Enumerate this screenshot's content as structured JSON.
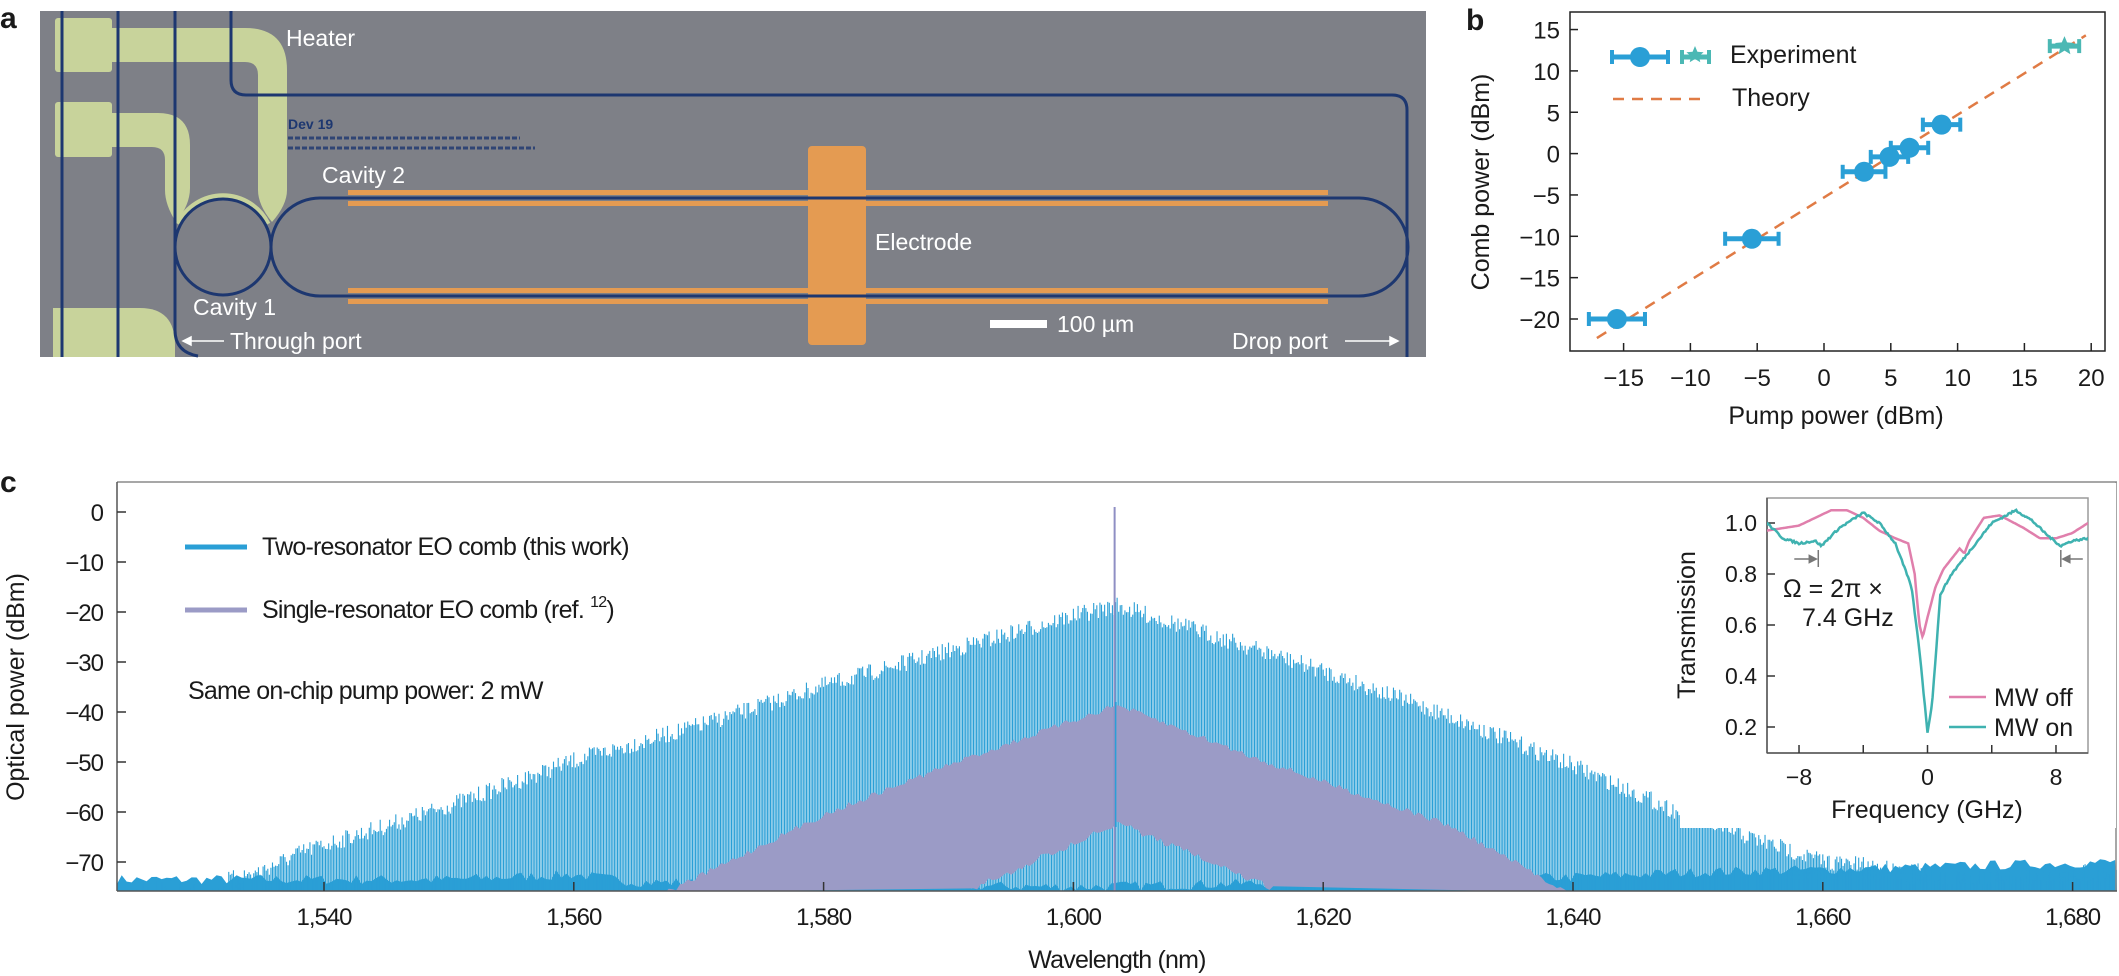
{
  "panel_labels": {
    "a": "a",
    "b": "b",
    "c": "c"
  },
  "micrograph": {
    "labels": {
      "heater": "Heater",
      "cavity1": "Cavity 1",
      "cavity2": "Cavity 2",
      "electrode": "Electrode",
      "through_port": "Through port",
      "drop_port": "Drop port",
      "scale_bar": "100 µm",
      "chip_text": "Dev 19"
    },
    "colors": {
      "background": "#7e8087",
      "waveguide": "#1d3770",
      "heater": "#c8d39b",
      "electrode": "#e49b52"
    }
  },
  "chart_data": [
    {
      "id": "b",
      "type": "scatter",
      "xlabel": "Pump power (dBm)",
      "ylabel": "Comb power (dBm)",
      "xlim": [
        -19,
        21
      ],
      "ylim": [
        -23.9,
        17.1
      ],
      "xticks": [
        -15,
        -10,
        -5,
        0,
        5,
        10,
        15,
        20
      ],
      "xtick_labels": [
        "−15",
        "−10",
        "−5",
        "0",
        "5",
        "10",
        "15",
        "20"
      ],
      "yticks": [
        -20,
        -15,
        -10,
        -5,
        0,
        5,
        10,
        15
      ],
      "ytick_labels": [
        "−20",
        "−15",
        "−10",
        "−5",
        "0",
        "5",
        "10",
        "15"
      ],
      "legend_placement": "top-left",
      "legend": [
        "Experiment",
        "Theory"
      ],
      "series": [
        {
          "name": "Experiment",
          "marker": "circle",
          "color": "#2a9fd6",
          "points": [
            {
              "x": -15.5,
              "y": -20.0,
              "xerr": 2.1
            },
            {
              "x": -5.4,
              "y": -10.3,
              "xerr": 2.0
            },
            {
              "x": 3.0,
              "y": -2.2,
              "xerr": 1.6
            },
            {
              "x": 4.9,
              "y": -0.4,
              "xerr": 1.4
            },
            {
              "x": 6.4,
              "y": 0.7,
              "xerr": 1.4
            },
            {
              "x": 8.8,
              "y": 3.5,
              "xerr": 1.4
            }
          ]
        },
        {
          "name": "Experiment",
          "marker": "star",
          "color": "#4bb8b4",
          "points": [
            {
              "x": 18.0,
              "y": 13.0,
              "xerr": 1.1
            }
          ]
        },
        {
          "name": "Theory",
          "style": "dashed",
          "color": "#e07b45",
          "line": {
            "x": [
              -17.0,
              19.6
            ],
            "y": [
              -22.3,
              14.3
            ]
          }
        }
      ]
    },
    {
      "id": "c",
      "type": "line",
      "xlabel": "Wavelength (nm)",
      "ylabel": "Optical power (dBm)",
      "xlim": [
        1523.4,
        1683.5
      ],
      "ylim": [
        -75.8,
        6
      ],
      "xticks": [
        1540,
        1560,
        1580,
        1600,
        1620,
        1640,
        1660,
        1680
      ],
      "xtick_labels": [
        "1,540",
        "1,560",
        "1,580",
        "1,600",
        "1,620",
        "1,640",
        "1,660",
        "1,680"
      ],
      "yticks": [
        0,
        -10,
        -20,
        -30,
        -40,
        -50,
        -60,
        -70
      ],
      "ytick_labels": [
        "0",
        "−10",
        "−20",
        "−30",
        "−40",
        "−50",
        "−60",
        "−70"
      ],
      "legend_placement": "top-left",
      "annotation": "Same on-chip pump power: 2 mW",
      "series": [
        {
          "name": "Two-resonator EO comb (this work)",
          "color": "#2a9fd6",
          "pump": {
            "x": 1603.3,
            "y": 1
          },
          "envelope": {
            "x": [
              1524,
              1530,
              1535,
              1538.5,
              1545,
              1550,
              1560,
              1570,
              1580,
              1590,
              1600,
              1603.5,
              1610,
              1620,
              1630,
              1640,
              1650,
              1660,
              1670,
              1683.5
            ],
            "y": [
              -74,
              -73.5,
              -70,
              -66,
              -61,
              -57,
              -48,
              -41,
              -33,
              -26,
              -19,
              -17,
              -22,
              -30,
              -39,
              -49,
              -60,
              -68,
              -71,
              -70
            ]
          },
          "noise_floor": {
            "x": [
              1524,
              1550,
              1560,
              1565,
              1600,
              1640,
              1650,
              1660,
              1683.5
            ],
            "y": [
              -74.5,
              -74.5,
              -73.5,
              -75,
              -76,
              -74,
              -73,
              -72.5,
              -71
            ]
          }
        },
        {
          "name": "Single-resonator EO comb (ref. ",
          "name_ref": "12",
          "name_end": ")",
          "color": "#9b9bc6",
          "upper": {
            "x": [
              1567,
              1580,
              1590,
              1603.5,
              1615,
              1630,
              1640
            ],
            "y": [
              -76,
              -60,
              -50,
              -38,
              -49,
              -62,
              -76
            ]
          },
          "lower": {
            "x": [
              1592,
              1603.5,
              1616
            ],
            "y": [
              -76,
              -63,
              -76
            ]
          }
        }
      ]
    },
    {
      "id": "c-inset",
      "type": "line",
      "xlabel": "Frequency (GHz)",
      "ylabel": "Transmission",
      "xlim": [
        -10,
        10
      ],
      "ylim": [
        0.1,
        1.1
      ],
      "xticks": [
        -8,
        -4,
        0,
        4,
        8
      ],
      "xtick_labels": [
        "−8",
        "",
        "0",
        "",
        "8"
      ],
      "yticks": [
        0.2,
        0.4,
        0.6,
        0.8,
        1.0
      ],
      "ytick_labels": [
        "0.2",
        "0.4",
        "0.6",
        "0.8",
        "1.0"
      ],
      "legend_placement": "bottom-right",
      "annotation_line1": "Ω = 2π ×",
      "annotation_line2": "7.4 GHz",
      "marker_positions": [
        -6.8,
        8.3
      ],
      "series": [
        {
          "name": "MW off",
          "color": "#e07fac",
          "x": [
            -10,
            -8,
            -6,
            -5,
            -4,
            -3,
            -2,
            -1.2,
            -0.8,
            -0.5,
            -0.3,
            0,
            0.5,
            1,
            2,
            2.3,
            2.6,
            3.5,
            4.5,
            6,
            7,
            8,
            9,
            10
          ],
          "y": [
            0.97,
            0.99,
            1.05,
            1.05,
            1.02,
            0.97,
            0.94,
            0.92,
            0.8,
            0.6,
            0.55,
            0.63,
            0.75,
            0.82,
            0.9,
            0.88,
            0.93,
            1.02,
            1.03,
            0.98,
            0.94,
            0.94,
            0.96,
            1.0
          ]
        },
        {
          "name": "MW on",
          "color": "#3fb2b0",
          "x": [
            -10,
            -9,
            -8,
            -7,
            -6.6,
            -6.3,
            -5.5,
            -4,
            -3,
            -2,
            -1,
            -0.5,
            0,
            0.3,
            0.8,
            1.5,
            2.5,
            4,
            5.5,
            6.5,
            7.5,
            8.3,
            9,
            10
          ],
          "y": [
            1.0,
            0.94,
            0.92,
            0.93,
            0.91,
            0.93,
            0.98,
            1.04,
            1.0,
            0.92,
            0.75,
            0.5,
            0.18,
            0.3,
            0.72,
            0.8,
            0.88,
            1.0,
            1.05,
            1.01,
            0.95,
            0.91,
            0.93,
            0.94
          ]
        }
      ]
    }
  ]
}
